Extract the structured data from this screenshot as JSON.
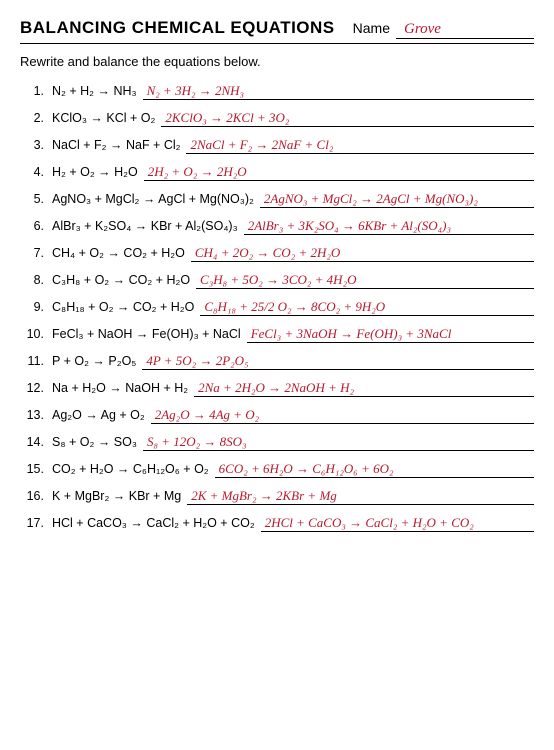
{
  "header": {
    "title": "BALANCING CHEMICAL EQUATIONS",
    "name_label": "Name",
    "student_name": "Grove"
  },
  "instruction": "Rewrite and balance the equations below.",
  "text_colors": {
    "printed": "#000000",
    "handwritten": "#b8182c"
  },
  "problems": [
    {
      "num": "1.",
      "eq": "N₂ + H₂  →  NH₃",
      "ans": "N₂ + 3H₂ → 2NH₃"
    },
    {
      "num": "2.",
      "eq": "KClO₃  →  KCl + O₂",
      "ans": "2KClO₃ → 2KCl + 3O₂"
    },
    {
      "num": "3.",
      "eq": "NaCl + F₂  →  NaF + Cl₂",
      "ans": "2NaCl + F₂ → 2NaF + Cl₂"
    },
    {
      "num": "4.",
      "eq": "H₂ + O₂  →  H₂O",
      "ans": "2H₂ + O₂ → 2H₂O"
    },
    {
      "num": "5.",
      "eq": "AgNO₃ + MgCl₂  →  AgCl + Mg(NO₃)₂",
      "ans": "2AgNO₃ + MgCl₂ → 2AgCl + Mg(NO₃)₂"
    },
    {
      "num": "6.",
      "eq": "AlBr₃ + K₂SO₄  →  KBr + Al₂(SO₄)₃",
      "ans": "2AlBr₃ + 3K₂SO₄ → 6KBr + Al₂(SO₄)₃"
    },
    {
      "num": "7.",
      "eq": "CH₄ + O₂ → CO₂ + H₂O",
      "ans": "CH₄ + 2O₂ → CO₂ + 2H₂O"
    },
    {
      "num": "8.",
      "eq": "C₃H₈ + O₂ → CO₂ + H₂O",
      "ans": "C₃H₈ + 5O₂ → 3CO₂ + 4H₂O"
    },
    {
      "num": "9.",
      "eq": "C₈H₁₈ + O₂  → CO₂ + H₂O",
      "ans": "C₈H₁₈ + 25/2 O₂ → 8CO₂ + 9H₂O"
    },
    {
      "num": "10.",
      "eq": "FeCl₃ + NaOH  →  Fe(OH)₃ + NaCl",
      "ans": "FeCl₃ + 3NaOH → Fe(OH)₃ + 3NaCl"
    },
    {
      "num": "11.",
      "eq": "P + O₂  →  P₂O₅",
      "ans": "4P + 5O₂ → 2P₂O₅"
    },
    {
      "num": "12.",
      "eq": "Na + H₂O  →  NaOH + H₂",
      "ans": "2Na + 2H₂O → 2NaOH + H₂"
    },
    {
      "num": "13.",
      "eq": "Ag₂O  →  Ag + O₂",
      "ans": "2Ag₂O → 4Ag + O₂"
    },
    {
      "num": "14.",
      "eq": "S₈ + O₂  →  SO₃",
      "ans": "S₈ + 12O₂ → 8SO₃"
    },
    {
      "num": "15.",
      "eq": "CO₂ + H₂O  →  C₆H₁₂O₆ + O₂",
      "ans": "6CO₂ + 6H₂O → C₆H₁₂O₆ + 6O₂"
    },
    {
      "num": "16.",
      "eq": "K + MgBr₂  →  KBr + Mg",
      "ans": "2K + MgBr₂ → 2KBr + Mg"
    },
    {
      "num": "17.",
      "eq": "HCl + CaCO₃  →  CaCl₂ + H₂O + CO₂",
      "ans": "2HCl + CaCO₃ → CaCl₂ + H₂O + CO₂"
    }
  ]
}
